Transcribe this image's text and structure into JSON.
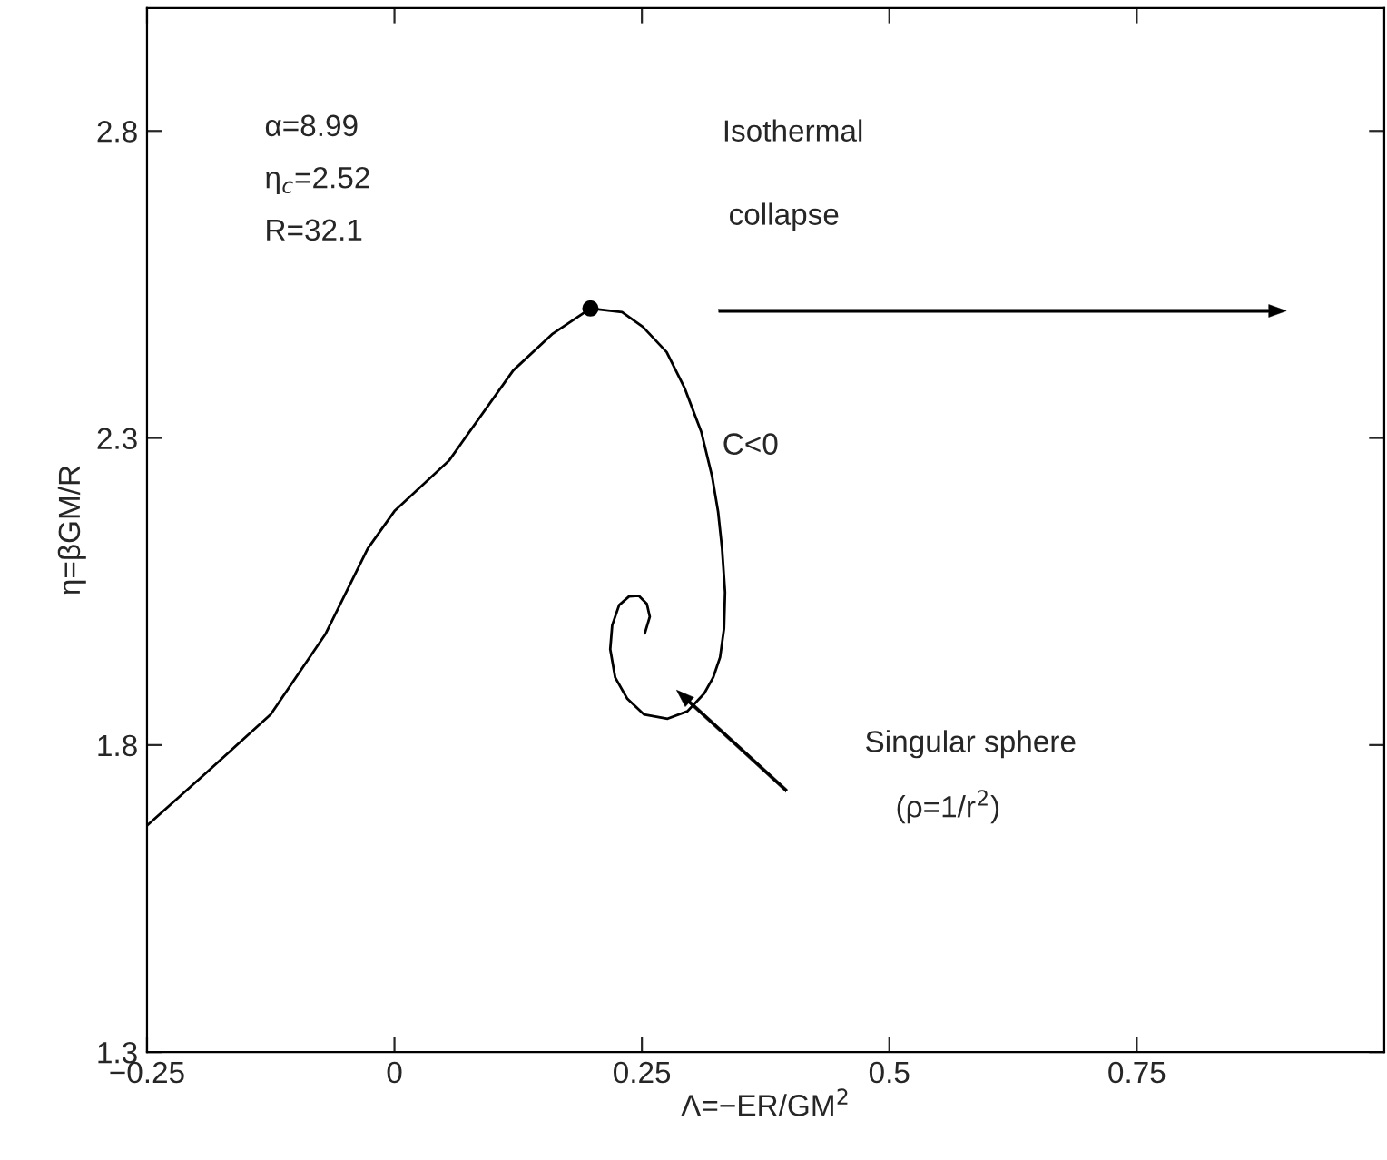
{
  "chart_data": {
    "type": "line",
    "xlabel": "Λ=−ER/GM$^{2}$",
    "ylabel": "η=βGM/R",
    "series": [
      {
        "color": "#000000",
        "x": [
          -0.25,
          -0.19,
          -0.125,
          -0.07,
          -0.027,
          0.0,
          0.055,
          0.12,
          0.16,
          0.198,
          0.23,
          0.251,
          0.275,
          0.293,
          0.31,
          0.321,
          0.327,
          0.331,
          0.334,
          0.333,
          0.329,
          0.322,
          0.313,
          0.296,
          0.276,
          0.252,
          0.235,
          0.223,
          0.218,
          0.22,
          0.227,
          0.237,
          0.247,
          0.255,
          0.258,
          0.253
        ],
        "values": [
          1.669,
          1.755,
          1.85,
          1.98,
          2.12,
          2.181,
          2.263,
          2.41,
          2.47,
          2.511,
          2.505,
          2.481,
          2.44,
          2.382,
          2.31,
          2.237,
          2.18,
          2.12,
          2.049,
          1.99,
          1.943,
          1.91,
          1.884,
          1.855,
          1.843,
          1.85,
          1.876,
          1.91,
          1.956,
          1.995,
          2.028,
          2.042,
          2.043,
          2.03,
          2.009,
          1.982
        ]
      },
      {
        "type": "scatter",
        "color": "#000000",
        "x": [
          0.198
        ],
        "values": [
          2.511
        ]
      }
    ],
    "xlim": [
      -0.25,
      1.0
    ],
    "ylim": [
      1.3,
      3.0
    ],
    "xticks": [
      {
        "value": -0.25,
        "label": "−0.25"
      },
      0,
      0.25,
      0.5,
      0.75
    ],
    "yticks": [
      1.3,
      1.8,
      2.3,
      2.8
    ],
    "grid": false,
    "legend": false,
    "line_style": "solid",
    "annotations": [
      "α=8.99",
      "η$_{c}$=2.52",
      "R=32.1",
      "C<0",
      "Isothermal",
      "collapse",
      "Singular sphere",
      "(ρ=1/r$^{2}$)"
    ]
  }
}
